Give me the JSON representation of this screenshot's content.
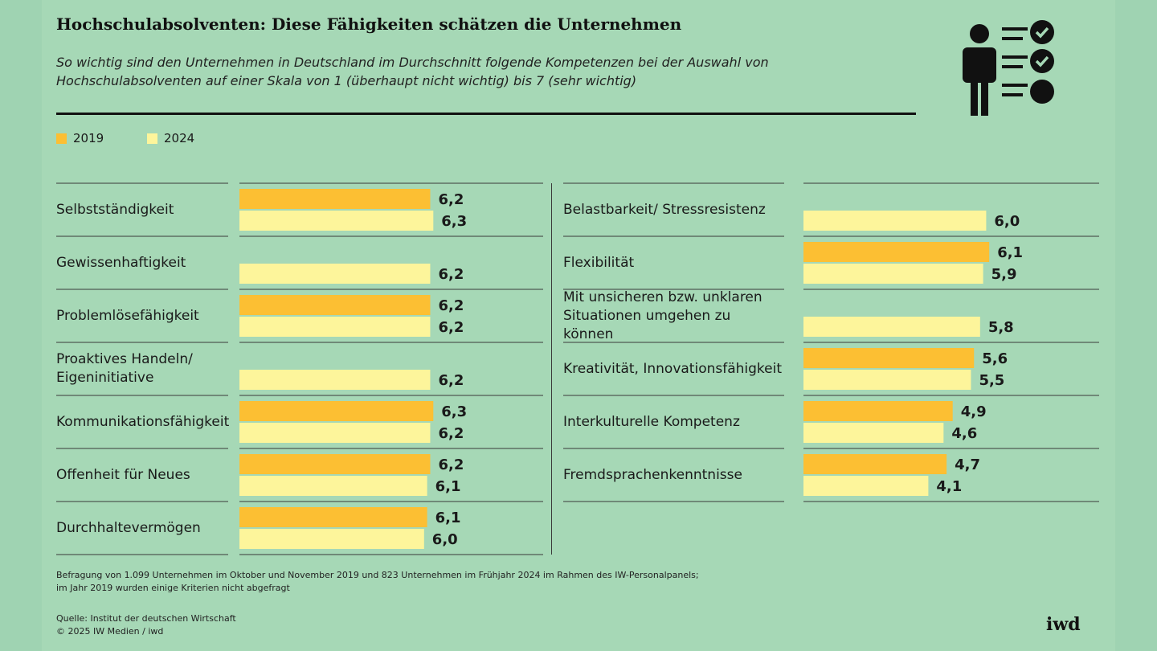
{
  "title": "Hochschulabsolventen: Diese Fähigkeiten schätzen die Unternehmen",
  "subtitle": "So wichtig sind den Unternehmen in Deutschland im Durchschnitt folgende Kompetenzen bei der Auswahl von Hochschulabsolventen auf einer Skala von 1 (überhaupt nicht wichtig) bis 7 (sehr wichtig)",
  "legend": {
    "y2019": "2019",
    "y2024": "2024"
  },
  "colors": {
    "y2019": "#fcbf33",
    "y2024": "#fdf59b",
    "background": "#a6d8b6",
    "text": "#1a1a1a"
  },
  "icon": "person-checklist-icon",
  "chart_data": {
    "type": "bar",
    "orientation": "horizontal",
    "title": "Hochschulabsolventen: Diese Fähigkeiten schätzen die Unternehmen",
    "xlim": [
      0,
      7
    ],
    "series": [
      {
        "name": "2019",
        "color": "#fcbf33"
      },
      {
        "name": "2024",
        "color": "#fdf59b"
      }
    ],
    "columns": [
      [
        {
          "label": "Selbstständigkeit",
          "v2019": 6.2,
          "v2024": 6.3,
          "t2019": "6,2",
          "t2024": "6,3"
        },
        {
          "label": "Gewissenhaftigkeit",
          "v2019": null,
          "v2024": 6.2,
          "t2019": null,
          "t2024": "6,2"
        },
        {
          "label": "Problemlösefähigkeit",
          "v2019": 6.2,
          "v2024": 6.2,
          "t2019": "6,2",
          "t2024": "6,2"
        },
        {
          "label": "Proaktives Handeln/ Eigeninitiative",
          "v2019": null,
          "v2024": 6.2,
          "t2019": null,
          "t2024": "6,2"
        },
        {
          "label": "Kommunikationsfähigkeit",
          "v2019": 6.3,
          "v2024": 6.2,
          "t2019": "6,3",
          "t2024": "6,2"
        },
        {
          "label": "Offenheit für Neues",
          "v2019": 6.2,
          "v2024": 6.1,
          "t2019": "6,2",
          "t2024": "6,1"
        },
        {
          "label": "Durchhaltevermögen",
          "v2019": 6.1,
          "v2024": 6.0,
          "t2019": "6,1",
          "t2024": "6,0"
        }
      ],
      [
        {
          "label": "Belastbarkeit/ Stressresistenz",
          "v2019": null,
          "v2024": 6.0,
          "t2019": null,
          "t2024": "6,0"
        },
        {
          "label": "Flexibilität",
          "v2019": 6.1,
          "v2024": 5.9,
          "t2019": "6,1",
          "t2024": "5,9"
        },
        {
          "label": "Mit unsicheren bzw. unklaren Situationen umgehen zu können",
          "v2019": null,
          "v2024": 5.8,
          "t2019": null,
          "t2024": "5,8"
        },
        {
          "label": "Kreativität, Innovationsfähigkeit",
          "v2019": 5.6,
          "v2024": 5.5,
          "t2019": "5,6",
          "t2024": "5,5"
        },
        {
          "label": "Interkulturelle Kompetenz",
          "v2019": 4.9,
          "v2024": 4.6,
          "t2019": "4,9",
          "t2024": "4,6"
        },
        {
          "label": "Fremdsprachenkenntnisse",
          "v2019": 4.7,
          "v2024": 4.1,
          "t2019": "4,7",
          "t2024": "4,1"
        }
      ]
    ]
  },
  "footnote": {
    "line1": "Befragung von 1.099 Unternehmen im Oktober und November 2019 und 823 Unternehmen im Frühjahr 2024 im Rahmen des IW-Personalpanels;",
    "line2": "im Jahr 2019 wurden einige Kriterien nicht abgefragt"
  },
  "source": {
    "line1": "Quelle: Institut der deutschen Wirtschaft",
    "line2": "© 2025 IW Medien / iwd"
  },
  "brand": "iwd"
}
